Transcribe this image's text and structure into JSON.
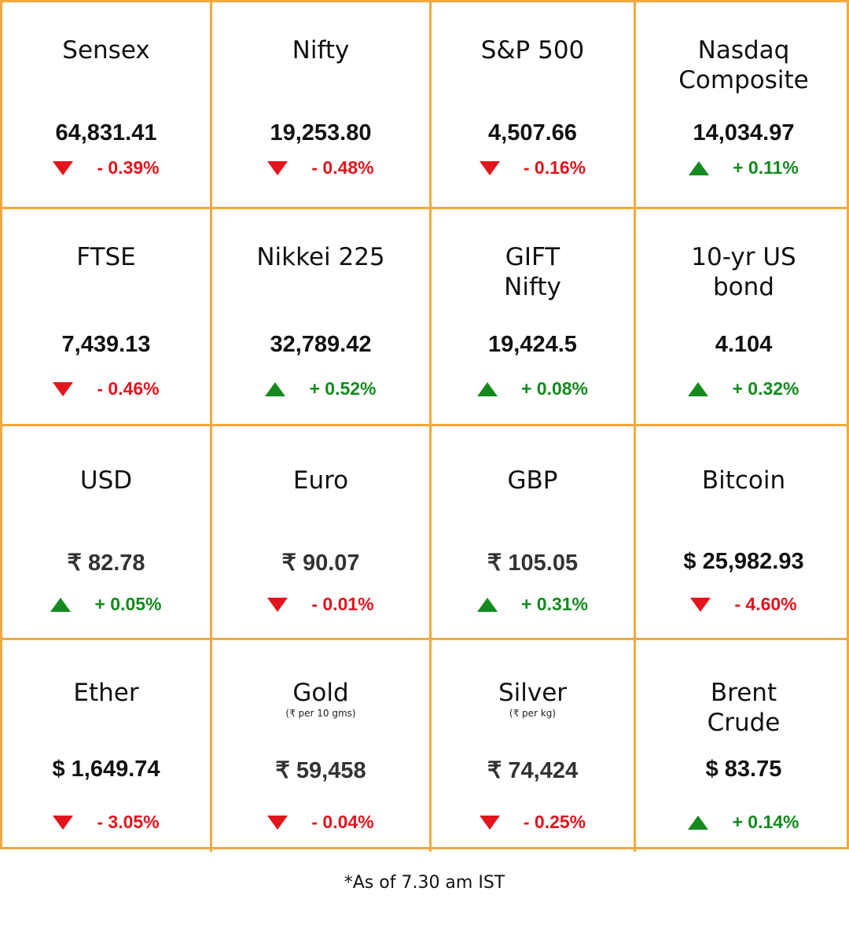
{
  "markets": [
    {
      "title": "Sensex",
      "subtitle": "",
      "value": "64,831.41",
      "direction": "down",
      "change": "- 0.39%"
    },
    {
      "title": "Nifty",
      "subtitle": "",
      "value": "19,253.80",
      "direction": "down",
      "change": "- 0.48%"
    },
    {
      "title": "S&P 500",
      "subtitle": "",
      "value": "4,507.66",
      "direction": "down",
      "change": "- 0.16%"
    },
    {
      "title": "Nasdaq\nComposite",
      "subtitle": "",
      "value": "14,034.97",
      "direction": "up",
      "change": "+ 0.11%"
    },
    {
      "title": "FTSE",
      "subtitle": "",
      "value": "7,439.13",
      "direction": "down",
      "change": "- 0.46%"
    },
    {
      "title": "Nikkei 225",
      "subtitle": "",
      "value": "32,789.42",
      "direction": "up",
      "change": "+ 0.52%"
    },
    {
      "title": "GIFT\nNifty",
      "subtitle": "",
      "value": "19,424.5",
      "direction": "up",
      "change": "+ 0.08%"
    },
    {
      "title": "10-yr US\nbond",
      "subtitle": "",
      "value": "4.104",
      "direction": "up",
      "change": "+ 0.32%"
    },
    {
      "title": "USD",
      "subtitle": "",
      "value": "₹ 82.78",
      "direction": "up",
      "change": "+ 0.05%"
    },
    {
      "title": "Euro",
      "subtitle": "",
      "value": "₹ 90.07",
      "direction": "down",
      "change": "- 0.01%"
    },
    {
      "title": "GBP",
      "subtitle": "",
      "value": "₹ 105.05",
      "direction": "up",
      "change": "+ 0.31%"
    },
    {
      "title": "Bitcoin",
      "subtitle": "",
      "value": "$ 25,982.93",
      "direction": "down",
      "change": "- 4.60%"
    },
    {
      "title": "Ether",
      "subtitle": "",
      "value": "$ 1,649.74",
      "direction": "down",
      "change": "- 3.05%"
    },
    {
      "title": "Gold",
      "subtitle": "(₹ per 10 gms)",
      "value": "₹ 59,458",
      "direction": "down",
      "change": "- 0.04%"
    },
    {
      "title": "Silver",
      "subtitle": "(₹ per kg)",
      "value": "₹ 74,424",
      "direction": "down",
      "change": "- 0.25%"
    },
    {
      "title": "Brent\nCrude",
      "subtitle": "",
      "value": "$ 83.75",
      "direction": "up",
      "change": "+ 0.14%"
    }
  ],
  "colors": {
    "border": "#f0a93f",
    "down": "#e2141c",
    "up": "#148a1e"
  },
  "footnote": "*As of 7.30 am IST"
}
